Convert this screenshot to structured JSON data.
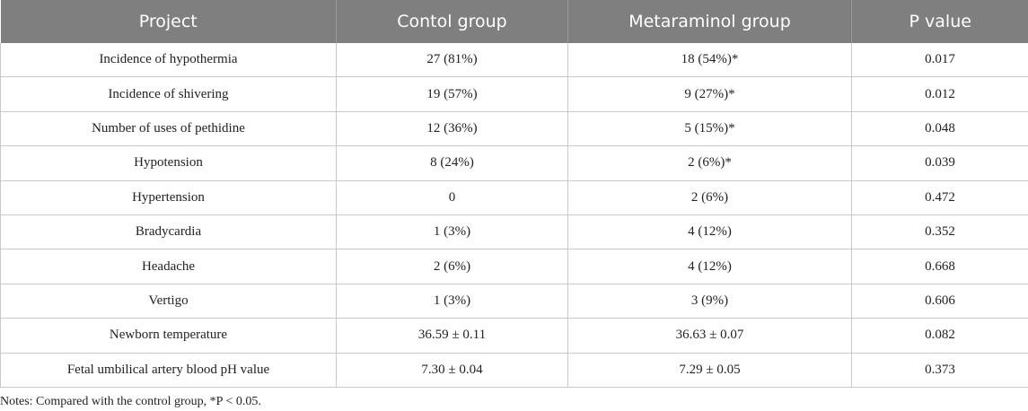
{
  "table": {
    "headers": [
      "Project",
      "Contol group",
      "Metaraminol group",
      "P value"
    ],
    "rows": [
      [
        "Incidence of hypothermia",
        "27 (81%)",
        "18 (54%)*",
        "0.017"
      ],
      [
        "Incidence of shivering",
        "19 (57%)",
        "9 (27%)*",
        "0.012"
      ],
      [
        "Number of uses of pethidine",
        "12 (36%)",
        "5 (15%)*",
        "0.048"
      ],
      [
        "Hypotension",
        "8 (24%)",
        "2 (6%)*",
        "0.039"
      ],
      [
        "Hypertension",
        "0",
        "2 (6%)",
        "0.472"
      ],
      [
        "Bradycardia",
        "1 (3%)",
        "4 (12%)",
        "0.352"
      ],
      [
        "Headache",
        "2 (6%)",
        "4 (12%)",
        "0.668"
      ],
      [
        "Vertigo",
        "1 (3%)",
        "3 (9%)",
        "0.606"
      ],
      [
        "Newborn temperature",
        "36.59 ± 0.11",
        "36.63 ± 0.07",
        "0.082"
      ],
      [
        "Fetal umbilical artery blood pH value",
        "7.30 ± 0.04",
        "7.29 ± 0.05",
        "0.373"
      ]
    ]
  },
  "notes": "Notes: Compared with the control group, *P < 0.05.",
  "colors": {
    "header_bg": "#7f7f7f",
    "header_text": "#ffffff",
    "grid_line": "#c9c9c9"
  }
}
